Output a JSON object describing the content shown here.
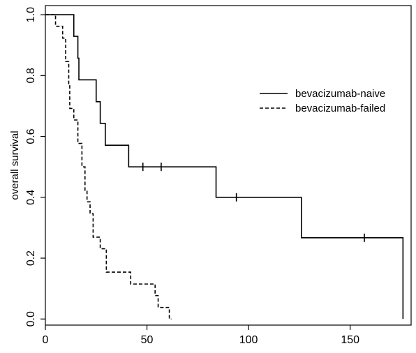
{
  "chart_data": {
    "type": "line",
    "title": "",
    "xlabel": "",
    "ylabel": "overall survival",
    "xlim": [
      0,
      180
    ],
    "ylim": [
      -0.02,
      1.03
    ],
    "xticks": [
      0,
      50,
      100,
      150
    ],
    "yticks": [
      0.0,
      0.2,
      0.4,
      0.6,
      0.8,
      1.0
    ],
    "xtick_labels": [
      "0",
      "50",
      "100",
      "150"
    ],
    "ytick_labels": [
      "0.0",
      "0.2",
      "0.4",
      "0.6",
      "0.8",
      "1.0"
    ],
    "legend": {
      "position": "top-right"
    },
    "series": [
      {
        "name": "bevacizumab-naive",
        "style": "solid",
        "color": "#000000",
        "steps": [
          [
            0,
            1.0
          ],
          [
            14,
            0.929
          ],
          [
            16,
            0.857
          ],
          [
            16.5,
            0.786
          ],
          [
            25,
            0.714
          ],
          [
            27,
            0.643
          ],
          [
            29.5,
            0.571
          ],
          [
            41,
            0.5
          ],
          [
            84,
            0.4
          ],
          [
            126,
            0.267
          ],
          [
            176,
            0.0
          ]
        ],
        "end_x": 176,
        "censored": [
          [
            48,
            0.5
          ],
          [
            57,
            0.5
          ],
          [
            94,
            0.4
          ],
          [
            157,
            0.267
          ]
        ]
      },
      {
        "name": "bevacizumab-failed",
        "style": "dashed",
        "color": "#000000",
        "steps": [
          [
            0,
            1.0
          ],
          [
            5,
            0.962
          ],
          [
            8.5,
            0.923
          ],
          [
            10,
            0.846
          ],
          [
            11.5,
            0.769
          ],
          [
            12,
            0.692
          ],
          [
            14,
            0.654
          ],
          [
            16,
            0.577
          ],
          [
            18,
            0.5
          ],
          [
            19.5,
            0.423
          ],
          [
            20.5,
            0.385
          ],
          [
            22,
            0.346
          ],
          [
            23.5,
            0.269
          ],
          [
            27,
            0.231
          ],
          [
            30,
            0.154
          ],
          [
            42,
            0.115
          ],
          [
            54,
            0.077
          ],
          [
            55.5,
            0.038
          ],
          [
            61,
            0.0
          ]
        ],
        "end_x": 62,
        "censored": []
      }
    ]
  }
}
